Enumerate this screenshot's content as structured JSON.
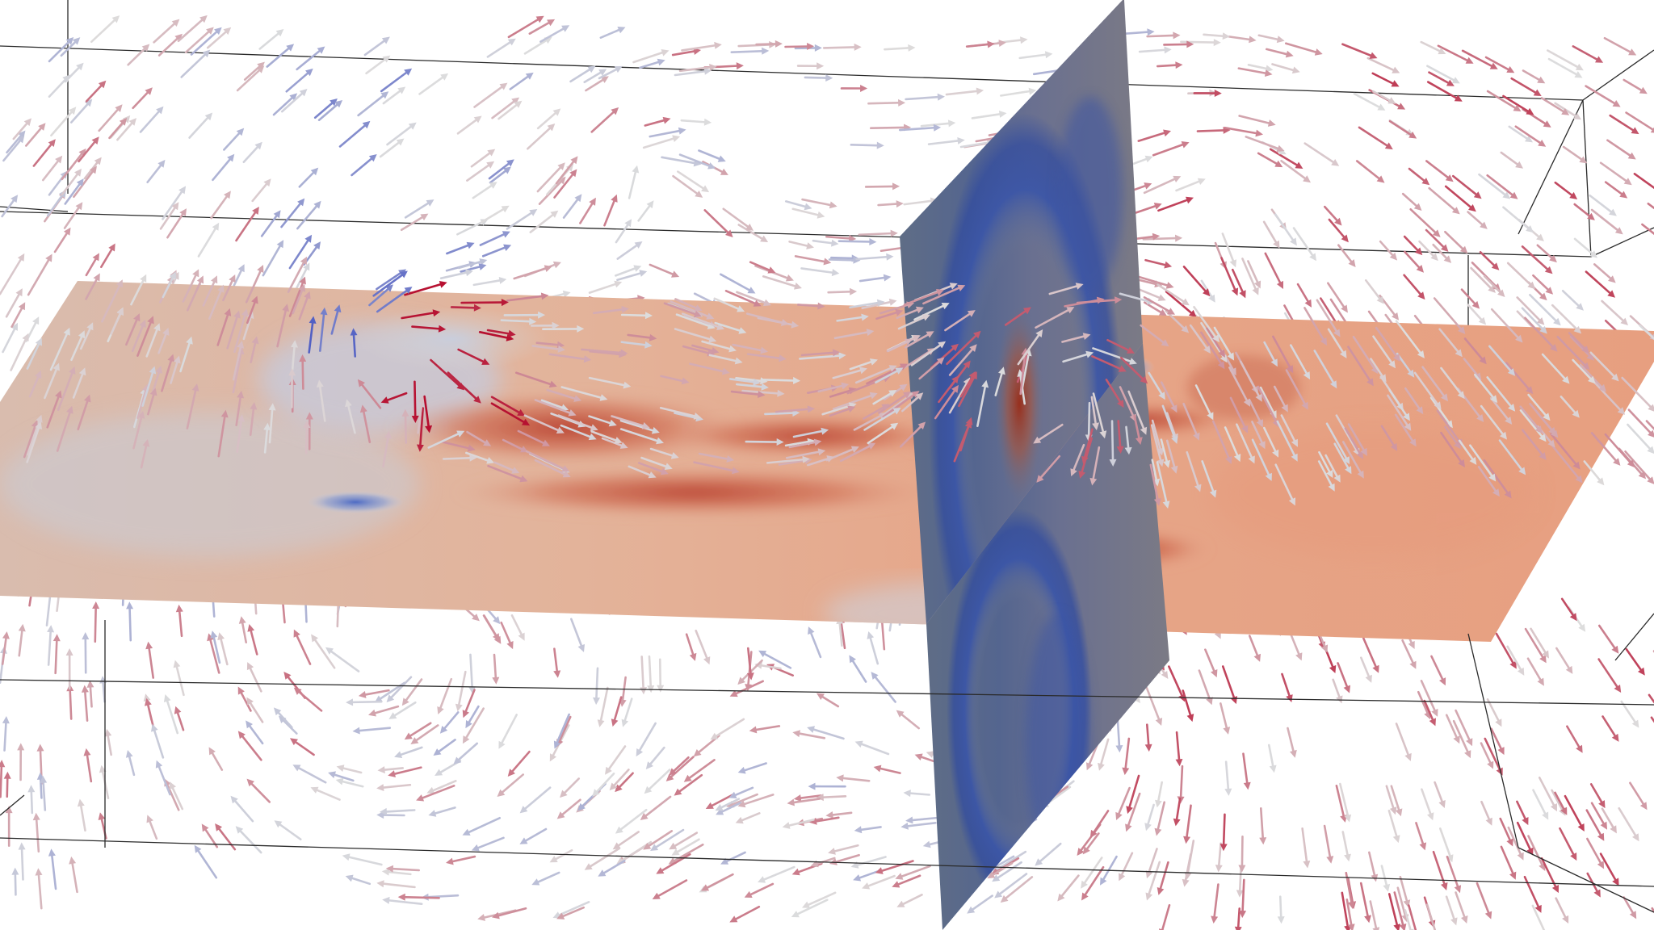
{
  "scene": {
    "background_color": "#ffffff",
    "outline_color": "#1a1a1a",
    "colormap": {
      "name": "cool-to-warm",
      "low": "#3b4cc0",
      "mid": "#dddddd",
      "high": "#b40426"
    },
    "glyph_type": "arrow",
    "slices": [
      {
        "name": "horizontal-slice",
        "orientation": "horizontal"
      },
      {
        "name": "vertical-slice",
        "orientation": "vertical"
      }
    ]
  }
}
